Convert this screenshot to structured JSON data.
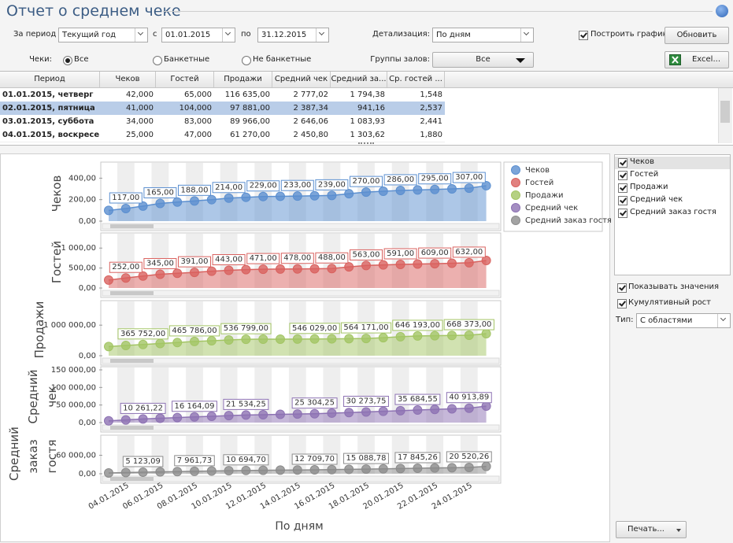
{
  "header": {
    "title": "Отчет о среднем чеке"
  },
  "filters": {
    "period_label": "За период",
    "period": "Текущий год",
    "from_label": "с",
    "from": "01.01.2015",
    "to_label": "по",
    "to": "31.12.2015",
    "detail_label": "Детализация:",
    "detail": "По дням",
    "build_chart": "Построить график",
    "refresh": "Обновить",
    "checks_label": "Чеки:",
    "checks_options": [
      "Все",
      "Банкетные",
      "Не банкетные"
    ],
    "checks_selected": 0,
    "halls_label": "Группы залов:",
    "halls": "Все",
    "excel": "Excel..."
  },
  "table": {
    "columns": [
      "Период",
      "Чеков",
      "Гостей",
      "Продажи",
      "Средний чек",
      "Средний за...",
      "Ср. гостей ..."
    ],
    "rows": [
      [
        "01.01.2015, четверг",
        "42,000",
        "65,000",
        "116 635,00",
        "2 777,02",
        "1 794,38",
        "1,548"
      ],
      [
        "02.01.2015, пятница",
        "41,000",
        "104,000",
        "97 881,00",
        "2 387,34",
        "941,16",
        "2,537"
      ],
      [
        "03.01.2015, суббота",
        "34,000",
        "83,000",
        "89 966,00",
        "2 646,06",
        "1 083,93",
        "2,441"
      ],
      [
        "04.01.2015, воскресе...",
        "25,000",
        "47,000",
        "61 270,00",
        "2 450,80",
        "1 303,62",
        "1,880"
      ]
    ],
    "selected_row": 1
  },
  "options": {
    "show_values": "Показывать значения",
    "cumulative": "Кумулятивный рост",
    "type_label": "Тип:",
    "type": "С областями",
    "print": "Печать..."
  },
  "chart_data": [
    {
      "type": "area",
      "ylim": [
        0,
        520
      ],
      "yticks": [
        {
          "value": 0,
          "label": "0,00"
        },
        {
          "value": 200,
          "label": "200,00"
        },
        {
          "value": 400,
          "label": "400,00"
        }
      ],
      "series": [
        {
          "name": "Чеков",
          "color": "#5b8fd0",
          "values": [
            100,
            117,
            140,
            165,
            178,
            188,
            200,
            214,
            222,
            229,
            231,
            233,
            236,
            239,
            255,
            270,
            278,
            286,
            290,
            295,
            300,
            307,
            330
          ],
          "value_labels": [
            null,
            "117,00",
            null,
            "165,00",
            null,
            "188,00",
            null,
            "214,00",
            null,
            "229,00",
            null,
            "233,00",
            null,
            "239,00",
            null,
            "270,00",
            null,
            "286,00",
            null,
            "295,00",
            null,
            "307,00",
            null
          ]
        }
      ]
    },
    {
      "type": "area",
      "ylim": [
        0,
        1300
      ],
      "yticks": [
        {
          "value": 0,
          "label": "0,00"
        },
        {
          "value": 500,
          "label": "500,00"
        },
        {
          "value": 1000,
          "label": "1 000,00"
        }
      ],
      "series": [
        {
          "name": "Гостей",
          "color": "#d9625f",
          "values": [
            200,
            252,
            300,
            345,
            370,
            391,
            420,
            443,
            460,
            471,
            475,
            478,
            483,
            488,
            530,
            563,
            578,
            591,
            600,
            609,
            620,
            632,
            690
          ],
          "value_labels": [
            null,
            "252,00",
            null,
            "345,00",
            null,
            "391,00",
            null,
            "443,00",
            null,
            "471,00",
            null,
            "478,00",
            null,
            "488,00",
            null,
            "563,00",
            null,
            "591,00",
            null,
            "609,00",
            null,
            "632,00",
            null
          ]
        }
      ]
    },
    {
      "type": "area",
      "ylim": [
        0,
        1700000
      ],
      "yticks": [
        {
          "value": 0,
          "label": "0,00"
        },
        {
          "value": 1000000,
          "label": "1 000 000,00"
        }
      ],
      "series": [
        {
          "name": "Продажи",
          "color": "#a3c564",
          "values": [
            300000,
            335000,
            365752,
            400000,
            430000,
            465786,
            490000,
            515000,
            536799,
            540000,
            542000,
            544000,
            546029,
            552000,
            558000,
            564171,
            590000,
            620000,
            646193,
            655000,
            662000,
            668373,
            720000
          ],
          "value_labels": [
            null,
            null,
            "365 752,00",
            null,
            null,
            "465 786,00",
            null,
            null,
            "536 799,00",
            null,
            null,
            null,
            "546 029,00",
            null,
            null,
            "564 171,00",
            null,
            null,
            "646 193,00",
            null,
            null,
            "668 373,00",
            null
          ]
        }
      ]
    },
    {
      "type": "area",
      "ylim": [
        0,
        150000
      ],
      "yticks": [
        {
          "value": 0,
          "label": "0,00"
        },
        {
          "value": 50000,
          "label": "50 000,00"
        },
        {
          "value": 100000,
          "label": "100 000,00"
        },
        {
          "value": 150000,
          "label": "150 000,00"
        }
      ],
      "series": [
        {
          "name": "Средний чек",
          "color": "#8d72b3",
          "values": [
            5000,
            7600,
            10261.22,
            12300,
            14300,
            16164.09,
            18000,
            19800,
            21534.25,
            22500,
            23500,
            24400,
            25304.25,
            27000,
            28600,
            30273.75,
            32100,
            33900,
            35684.55,
            37600,
            39300,
            40913.89,
            47000
          ],
          "value_labels": [
            null,
            null,
            "10 261,22",
            null,
            null,
            "16 164,09",
            null,
            null,
            "21 534,25",
            null,
            null,
            null,
            "25 304,25",
            null,
            null,
            "30 273,75",
            null,
            null,
            "35 684,55",
            null,
            null,
            "40 913,89",
            null
          ]
        }
      ]
    },
    {
      "type": "area",
      "ylim": [
        0,
        115000
      ],
      "yticks": [
        {
          "value": 0,
          "label": "0,00"
        },
        {
          "value": 60000,
          "label": "60 000,00"
        }
      ],
      "x_label": "По дням",
      "categories": [
        null,
        "04.01.2015",
        null,
        "06.01.2015",
        null,
        "08.01.2015",
        null,
        "10.01.2015",
        null,
        "12.01.2015",
        null,
        "14.01.2015",
        null,
        "16.01.2015",
        null,
        "18.01.2015",
        null,
        "20.01.2015",
        null,
        "22.01.2015",
        null,
        "24.01.2015",
        null
      ],
      "series": [
        {
          "name": "Средний заказ гостя",
          "color": "#8c8c8c",
          "values": [
            2500,
            3800,
            5123.09,
            6100,
            7000,
            7961.73,
            8900,
            9800,
            10694.7,
            11200,
            11700,
            12200,
            12709.7,
            13500,
            14300,
            15088.78,
            16000,
            16900,
            17845.26,
            18700,
            19600,
            20520.26,
            24000
          ],
          "value_labels": [
            null,
            null,
            "5 123,09",
            null,
            null,
            "7 961,73",
            null,
            null,
            "10 694,70",
            null,
            null,
            null,
            "12 709,70",
            null,
            null,
            "15 088,78",
            null,
            null,
            "17 845,26",
            null,
            null,
            "20 520,26",
            null
          ]
        }
      ]
    }
  ]
}
